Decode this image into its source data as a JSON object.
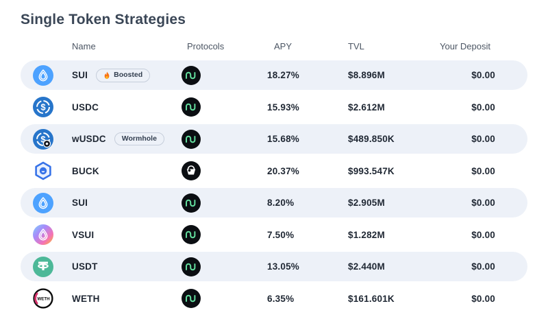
{
  "title": "Single Token Strategies",
  "columns": {
    "name": "Name",
    "protocols": "Protocols",
    "apy": "APY",
    "tvl": "TVL",
    "deposit": "Your Deposit"
  },
  "rows": [
    {
      "token": "SUI",
      "token_icon": "sui-token-icon",
      "badge": "Boosted",
      "badge_flame": true,
      "protocol_icon": "navi-protocol-icon",
      "apy": "18.27%",
      "tvl": "$8.896M",
      "deposit": "$0.00"
    },
    {
      "token": "USDC",
      "token_icon": "usdc-token-icon",
      "badge": null,
      "badge_flame": false,
      "protocol_icon": "navi-protocol-icon",
      "apy": "15.93%",
      "tvl": "$2.612M",
      "deposit": "$0.00"
    },
    {
      "token": "wUSDC",
      "token_icon": "wusdc-token-icon",
      "badge": "Wormhole",
      "badge_flame": false,
      "protocol_icon": "navi-protocol-icon",
      "apy": "15.68%",
      "tvl": "$489.850K",
      "deposit": "$0.00"
    },
    {
      "token": "BUCK",
      "token_icon": "buck-token-icon",
      "badge": null,
      "badge_flame": false,
      "protocol_icon": "bucket-protocol-icon",
      "apy": "20.37%",
      "tvl": "$993.547K",
      "deposit": "$0.00"
    },
    {
      "token": "SUI",
      "token_icon": "sui-token-icon",
      "badge": null,
      "badge_flame": false,
      "protocol_icon": "navi-protocol-icon",
      "apy": "8.20%",
      "tvl": "$2.905M",
      "deposit": "$0.00"
    },
    {
      "token": "VSUI",
      "token_icon": "vsui-token-icon",
      "badge": null,
      "badge_flame": false,
      "protocol_icon": "navi-protocol-icon",
      "apy": "7.50%",
      "tvl": "$1.282M",
      "deposit": "$0.00"
    },
    {
      "token": "USDT",
      "token_icon": "usdt-token-icon",
      "badge": null,
      "badge_flame": false,
      "protocol_icon": "navi-protocol-icon",
      "apy": "13.05%",
      "tvl": "$2.440M",
      "deposit": "$0.00"
    },
    {
      "token": "WETH",
      "token_icon": "weth-token-icon",
      "badge": null,
      "badge_flame": false,
      "protocol_icon": "navi-protocol-icon",
      "apy": "6.35%",
      "tvl": "$161.601K",
      "deposit": "$0.00"
    }
  ],
  "colors": {
    "row_alt_bg": "#edf1f8",
    "text_dark": "#1f2733",
    "header_text": "#4b5563",
    "title_text": "#3a4656",
    "sui_blue": "#4da2ff",
    "usdc_blue": "#2775ca",
    "buck_blue": "#3672e8",
    "usdt_teal": "#4db898",
    "navi_green": "#62de9e",
    "flame_orange": "#f97316",
    "weth_pink": "#d6336c"
  }
}
